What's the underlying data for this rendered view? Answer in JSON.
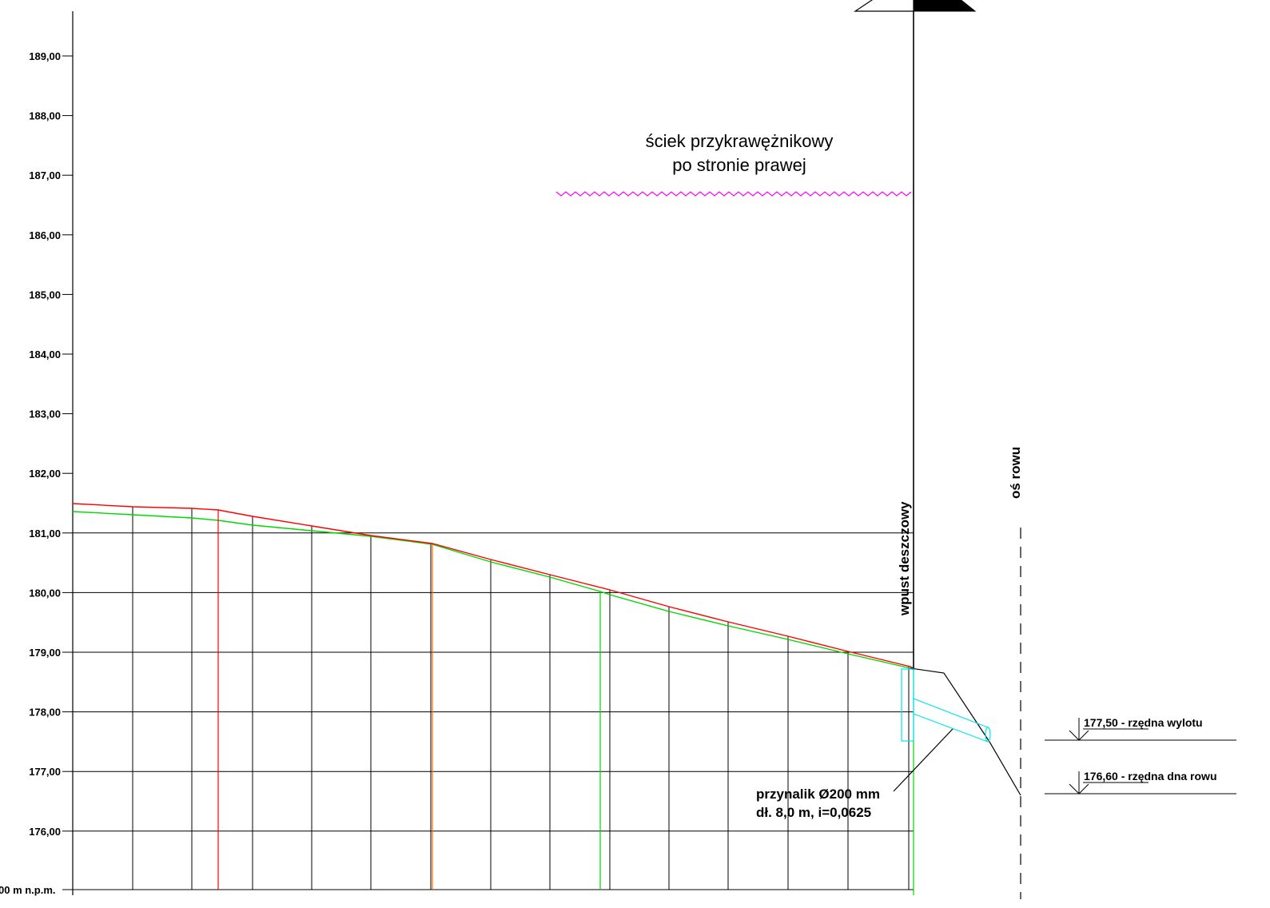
{
  "axis": {
    "ticks": [
      {
        "value": 189,
        "label": "189,00"
      },
      {
        "value": 188,
        "label": "188,00"
      },
      {
        "value": 187,
        "label": "187,00"
      },
      {
        "value": 186,
        "label": "186,00"
      },
      {
        "value": 185,
        "label": "185,00"
      },
      {
        "value": 184,
        "label": "184,00"
      },
      {
        "value": 183,
        "label": "183,00"
      },
      {
        "value": 182,
        "label": "182,00"
      },
      {
        "value": 181,
        "label": "181,00"
      },
      {
        "value": 180,
        "label": "180,00"
      },
      {
        "value": 179,
        "label": "179,00"
      },
      {
        "value": 178,
        "label": "178,00"
      },
      {
        "value": 177,
        "label": "177,00"
      },
      {
        "value": 176,
        "label": "176,00"
      }
    ],
    "datum_label": "00 m n.p.m."
  },
  "annotations": {
    "gutter_title_line1": "ściek przykrawężnikowy",
    "gutter_title_line2": "po stronie prawej",
    "inlet_label": "wpust deszczowy",
    "ditch_axis_label": "oś rowu",
    "pipe_line1": "przynalik Ø200 mm",
    "pipe_line2": "dł. 8,0 m, i=0,0625",
    "outlet_level": "177,50 - rzędna wylotu",
    "ditch_bottom_level": "176,60 - rzędna dna rowu"
  },
  "colors": {
    "design_line": "#ff0000",
    "terrain_line": "#00d800",
    "gutter": "#ff00ff",
    "pipe": "#00e5ee",
    "grid": "#000000"
  }
}
